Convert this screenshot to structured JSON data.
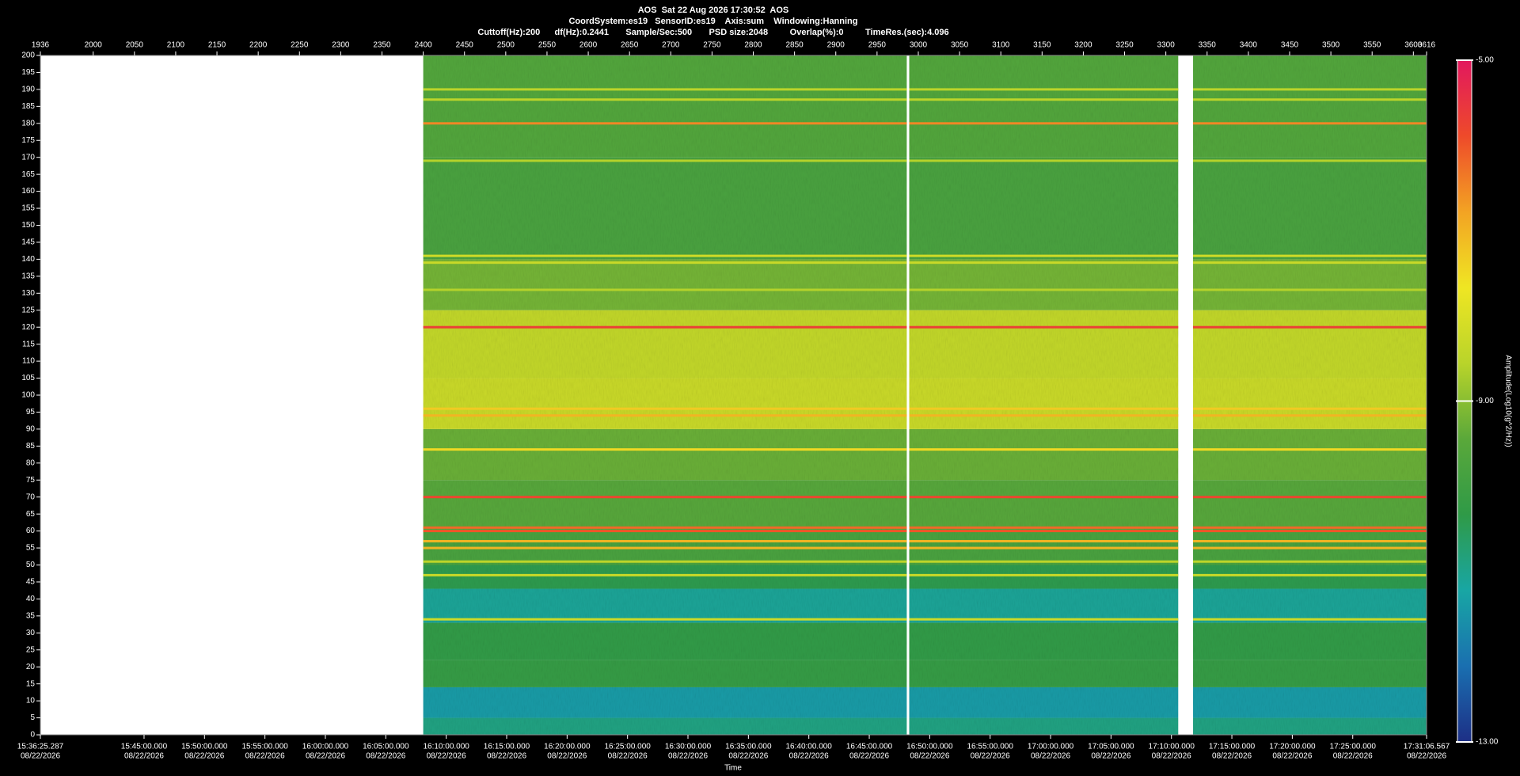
{
  "chart_data": {
    "type": "spectrogram",
    "title_lines": [
      "AOS  Sat 22 Aug 2026 17:30:52  AOS",
      "CoordSystem:es19   SensorID:es19    Axis:sum    Windowing:Hanning",
      "Cuttoff(Hz):200      df(Hz):0.2441       Sample/Sec:500       PSD size:2048         Overlap(%):0         TimeRes.(sec):4.096"
    ],
    "x_label": "Time",
    "xlim": [
      1936,
      3616
    ],
    "xticks": [
      1936,
      2000,
      2050,
      2100,
      2150,
      2200,
      2250,
      2300,
      2350,
      2400,
      2450,
      2500,
      2550,
      2600,
      2650,
      2700,
      2750,
      2800,
      2850,
      2900,
      2950,
      3000,
      3050,
      3100,
      3150,
      3200,
      3250,
      3300,
      3350,
      3400,
      3450,
      3500,
      3550,
      3600,
      3616
    ],
    "time_ticks": [
      {
        "value": 1936,
        "label": "15:36:25.287",
        "date": "08/22/2026"
      },
      {
        "value": 2061.66,
        "label": "15:45:00.000",
        "date": "08/22/2026"
      },
      {
        "value": 2134.9,
        "label": "15:50:00.000",
        "date": "08/22/2026"
      },
      {
        "value": 2208.14,
        "label": "15:55:00.000",
        "date": "08/22/2026"
      },
      {
        "value": 2281.39,
        "label": "16:00:00.000",
        "date": "08/22/2026"
      },
      {
        "value": 2354.63,
        "label": "16:05:00.000",
        "date": "08/22/2026"
      },
      {
        "value": 2427.87,
        "label": "16:10:00.000",
        "date": "08/22/2026"
      },
      {
        "value": 2501.11,
        "label": "16:15:00.000",
        "date": "08/22/2026"
      },
      {
        "value": 2574.36,
        "label": "16:20:00.000",
        "date": "08/22/2026"
      },
      {
        "value": 2647.6,
        "label": "16:25:00.000",
        "date": "08/22/2026"
      },
      {
        "value": 2720.84,
        "label": "16:30:00.000",
        "date": "08/22/2026"
      },
      {
        "value": 2794.08,
        "label": "16:35:00.000",
        "date": "08/22/2026"
      },
      {
        "value": 2867.33,
        "label": "16:40:00.000",
        "date": "08/22/2026"
      },
      {
        "value": 2940.57,
        "label": "16:45:00.000",
        "date": "08/22/2026"
      },
      {
        "value": 3013.81,
        "label": "16:50:00.000",
        "date": "08/22/2026"
      },
      {
        "value": 3087.05,
        "label": "16:55:00.000",
        "date": "08/22/2026"
      },
      {
        "value": 3160.3,
        "label": "17:00:00.000",
        "date": "08/22/2026"
      },
      {
        "value": 3233.54,
        "label": "17:05:00.000",
        "date": "08/22/2026"
      },
      {
        "value": 3306.78,
        "label": "17:10:00.000",
        "date": "08/22/2026"
      },
      {
        "value": 3380.02,
        "label": "17:15:00.000",
        "date": "08/22/2026"
      },
      {
        "value": 3453.27,
        "label": "17:20:00.000",
        "date": "08/22/2026"
      },
      {
        "value": 3526.51,
        "label": "17:25:00.000",
        "date": "08/22/2026"
      },
      {
        "value": 3616,
        "label": "17:31:06.567",
        "date": "08/22/2026"
      }
    ],
    "ylim": [
      0,
      200
    ],
    "yticks": [
      0,
      5,
      10,
      15,
      20,
      25,
      30,
      35,
      40,
      45,
      50,
      55,
      60,
      65,
      70,
      75,
      80,
      85,
      90,
      95,
      100,
      105,
      110,
      115,
      120,
      125,
      130,
      135,
      140,
      145,
      150,
      155,
      160,
      165,
      170,
      175,
      180,
      185,
      190,
      195,
      200
    ],
    "segments": [
      [
        2400,
        2986
      ],
      [
        2989,
        3315
      ],
      [
        3333,
        3616
      ]
    ],
    "bands": [
      {
        "from": 0,
        "to": 5,
        "value": -10.9
      },
      {
        "from": 5,
        "to": 14,
        "value": -11.4
      },
      {
        "from": 14,
        "to": 22,
        "value": -10.2
      },
      {
        "from": 22,
        "to": 33,
        "value": -10.3
      },
      {
        "from": 33,
        "to": 43,
        "value": -11.1
      },
      {
        "from": 43,
        "to": 50,
        "value": -10.4
      },
      {
        "from": 50,
        "to": 60,
        "value": -9.8
      },
      {
        "from": 60,
        "to": 75,
        "value": -9.5
      },
      {
        "from": 75,
        "to": 90,
        "value": -9.3
      },
      {
        "from": 90,
        "to": 105,
        "value": -8.3
      },
      {
        "from": 105,
        "to": 125,
        "value": -8.4
      },
      {
        "from": 125,
        "to": 140,
        "value": -9.2
      },
      {
        "from": 140,
        "to": 170,
        "value": -9.8
      },
      {
        "from": 170,
        "to": 200,
        "value": -9.6
      }
    ],
    "lines": [
      {
        "freq": 34,
        "value": -8.2
      },
      {
        "freq": 47,
        "value": -8.3
      },
      {
        "freq": 51,
        "value": -8.5
      },
      {
        "freq": 55,
        "value": -7.0
      },
      {
        "freq": 57,
        "value": -7.0
      },
      {
        "freq": 60,
        "value": -6.0
      },
      {
        "freq": 61,
        "value": -6.2
      },
      {
        "freq": 70,
        "value": -5.8
      },
      {
        "freq": 84,
        "value": -7.5
      },
      {
        "freq": 94,
        "value": -7.0
      },
      {
        "freq": 96,
        "value": -7.3
      },
      {
        "freq": 120,
        "value": -5.7
      },
      {
        "freq": 131,
        "value": -8.6
      },
      {
        "freq": 139,
        "value": -8.3
      },
      {
        "freq": 141,
        "value": -8.2
      },
      {
        "freq": 169,
        "value": -8.6
      },
      {
        "freq": 180,
        "value": -6.5
      },
      {
        "freq": 187,
        "value": -8.5
      },
      {
        "freq": 190,
        "value": -8.5
      }
    ],
    "colorbar": {
      "label": "Amplitude(Log10(g^2/Hz))",
      "lim": [
        -13,
        -5
      ],
      "ticks": [
        {
          "value": -5,
          "label": "-5.00"
        },
        {
          "value": -9,
          "label": "-9.00"
        },
        {
          "value": -13,
          "label": "-13.00"
        }
      ],
      "colors": [
        "#1d2f86",
        "#1a6fb0",
        "#18a6a4",
        "#2f9a47",
        "#5aa83a",
        "#b9d42a",
        "#efe623",
        "#f3a323",
        "#ee4a2a",
        "#e2185e"
      ]
    }
  }
}
